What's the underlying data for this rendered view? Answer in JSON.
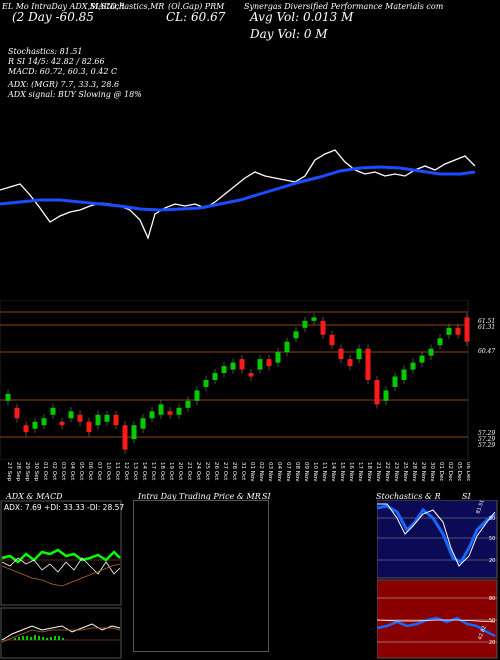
{
  "header": {
    "left_top": "EL Mo    IntraDay ADX,MACD,R",
    "left_sub": "(2 Day   -60.85",
    "mid_top": "SI,Stochastics,MR",
    "center_top": "(Ol.Gap) PRM",
    "cl_value": "CL: 60.67",
    "right_top": "Synergas   Diversified   Performance   Materials   com",
    "avg_vol": "Avg Vol: 0.013   M",
    "day_vol": "Day Vol: 0   M"
  },
  "indicators": {
    "stochastics": "Stochastics: 81.51",
    "rsi": "R          SI 14/5: 42.82 / 82.66",
    "macd": "MACD: 60.72,  60.3,  0.42   C",
    "adx": "ADX:                                    (MGR) 7.7,  33.3,  28.6",
    "adx_signal": "ADX  signal:                          BUY Slowing @ 18%"
  },
  "price_axis": {
    "labels": [
      "61.51",
      "61.31",
      "60.47",
      "57.29",
      "57.29",
      "57.29"
    ]
  },
  "date_labels": [
    "27 Sep",
    "28 Sep",
    "29 Sep",
    "30 Sep",
    "01 Oct",
    "02 Oct",
    "03 Oct",
    "04 Oct",
    "05 Oct",
    "06 Oct",
    "07 Oct",
    "10 Oct",
    "11 Oct",
    "12 Oct",
    "13 Oct",
    "14 Oct",
    "17 Oct",
    "18 Oct",
    "19 Oct",
    "20 Oct",
    "21 Oct",
    "24 Oct",
    "25 Oct",
    "26 Oct",
    "27 Oct",
    "28 Oct",
    "31 Oct",
    "01 Nov",
    "02 Nov",
    "03 Nov",
    "04 Nov",
    "07 Nov",
    "08 Nov",
    "09 Nov",
    "10 Nov",
    "11 Nov",
    "14 Nov",
    "15 Nov",
    "16 Nov",
    "17 Nov",
    "18 Nov",
    "21 Nov",
    "22 Nov",
    "23 Nov",
    "25 Nov",
    "28 Nov",
    "29 Nov",
    "30 Nov",
    "01 Dec",
    "02 Dec",
    "05 Dec",
    "06 Dec"
  ],
  "panels": {
    "adx_title": "ADX  & MACD",
    "adx_legend": "ADX: 7.69  +DI: 33.33  -DI: 28.57",
    "intraday_title": "Intra  Day Trading Price  & MR",
    "intraday_title_right": "SI",
    "stoch_title": "Stochastics & R",
    "stoch_title_right": "SI",
    "stoch_scale": [
      "80",
      "50",
      "20"
    ],
    "rsi_scale": [
      "80",
      "50",
      "20"
    ],
    "stoch_value": "81.51",
    "rsi_value": "42.82"
  },
  "colors": {
    "up_candle": "#00cc00",
    "down_candle": "#ff1a1a",
    "ma_line": "#1a4dff",
    "price_line": "#ffffff",
    "level_line": "#b85a1a",
    "adx_green": "#00ff00",
    "stoch_bg": "#0a0a55",
    "rsi_bg": "#8a0000"
  },
  "candles": [
    {
      "o": 58.7,
      "c": 58.9
    },
    {
      "o": 58.5,
      "c": 58.2
    },
    {
      "o": 58.0,
      "c": 57.8
    },
    {
      "o": 57.9,
      "c": 58.1
    },
    {
      "o": 58.0,
      "c": 58.2
    },
    {
      "o": 58.3,
      "c": 58.5
    },
    {
      "o": 58.1,
      "c": 58.0
    },
    {
      "o": 58.2,
      "c": 58.4
    },
    {
      "o": 58.3,
      "c": 58.1
    },
    {
      "o": 58.1,
      "c": 57.8
    },
    {
      "o": 58.0,
      "c": 58.3
    },
    {
      "o": 58.1,
      "c": 58.3
    },
    {
      "o": 58.3,
      "c": 58.0
    },
    {
      "o": 58.0,
      "c": 57.3
    },
    {
      "o": 57.6,
      "c": 58.0
    },
    {
      "o": 57.9,
      "c": 58.2
    },
    {
      "o": 58.2,
      "c": 58.4
    },
    {
      "o": 58.3,
      "c": 58.6
    },
    {
      "o": 58.4,
      "c": 58.3
    },
    {
      "o": 58.3,
      "c": 58.5
    },
    {
      "o": 58.5,
      "c": 58.7
    },
    {
      "o": 58.7,
      "c": 59.0
    },
    {
      "o": 59.1,
      "c": 59.3
    },
    {
      "o": 59.3,
      "c": 59.5
    },
    {
      "o": 59.5,
      "c": 59.7
    },
    {
      "o": 59.6,
      "c": 59.8
    },
    {
      "o": 59.9,
      "c": 59.6
    },
    {
      "o": 59.5,
      "c": 59.4
    },
    {
      "o": 59.6,
      "c": 59.9
    },
    {
      "o": 59.9,
      "c": 59.7
    },
    {
      "o": 59.8,
      "c": 60.1
    },
    {
      "o": 60.1,
      "c": 60.4
    },
    {
      "o": 60.5,
      "c": 60.7
    },
    {
      "o": 60.8,
      "c": 61.0
    },
    {
      "o": 61.0,
      "c": 61.1
    },
    {
      "o": 61.0,
      "c": 60.6
    },
    {
      "o": 60.6,
      "c": 60.3
    },
    {
      "o": 60.2,
      "c": 59.9
    },
    {
      "o": 59.9,
      "c": 59.7
    },
    {
      "o": 59.9,
      "c": 60.2
    },
    {
      "o": 60.2,
      "c": 59.3
    },
    {
      "o": 59.3,
      "c": 58.6
    },
    {
      "o": 58.7,
      "c": 59.0
    },
    {
      "o": 59.1,
      "c": 59.4
    },
    {
      "o": 59.3,
      "c": 59.6
    },
    {
      "o": 59.6,
      "c": 59.8
    },
    {
      "o": 59.8,
      "c": 60.0
    },
    {
      "o": 60.0,
      "c": 60.2
    },
    {
      "o": 60.3,
      "c": 60.5
    },
    {
      "o": 60.6,
      "c": 60.8
    },
    {
      "o": 60.8,
      "c": 60.6
    },
    {
      "o": 61.1,
      "c": 60.4
    }
  ]
}
